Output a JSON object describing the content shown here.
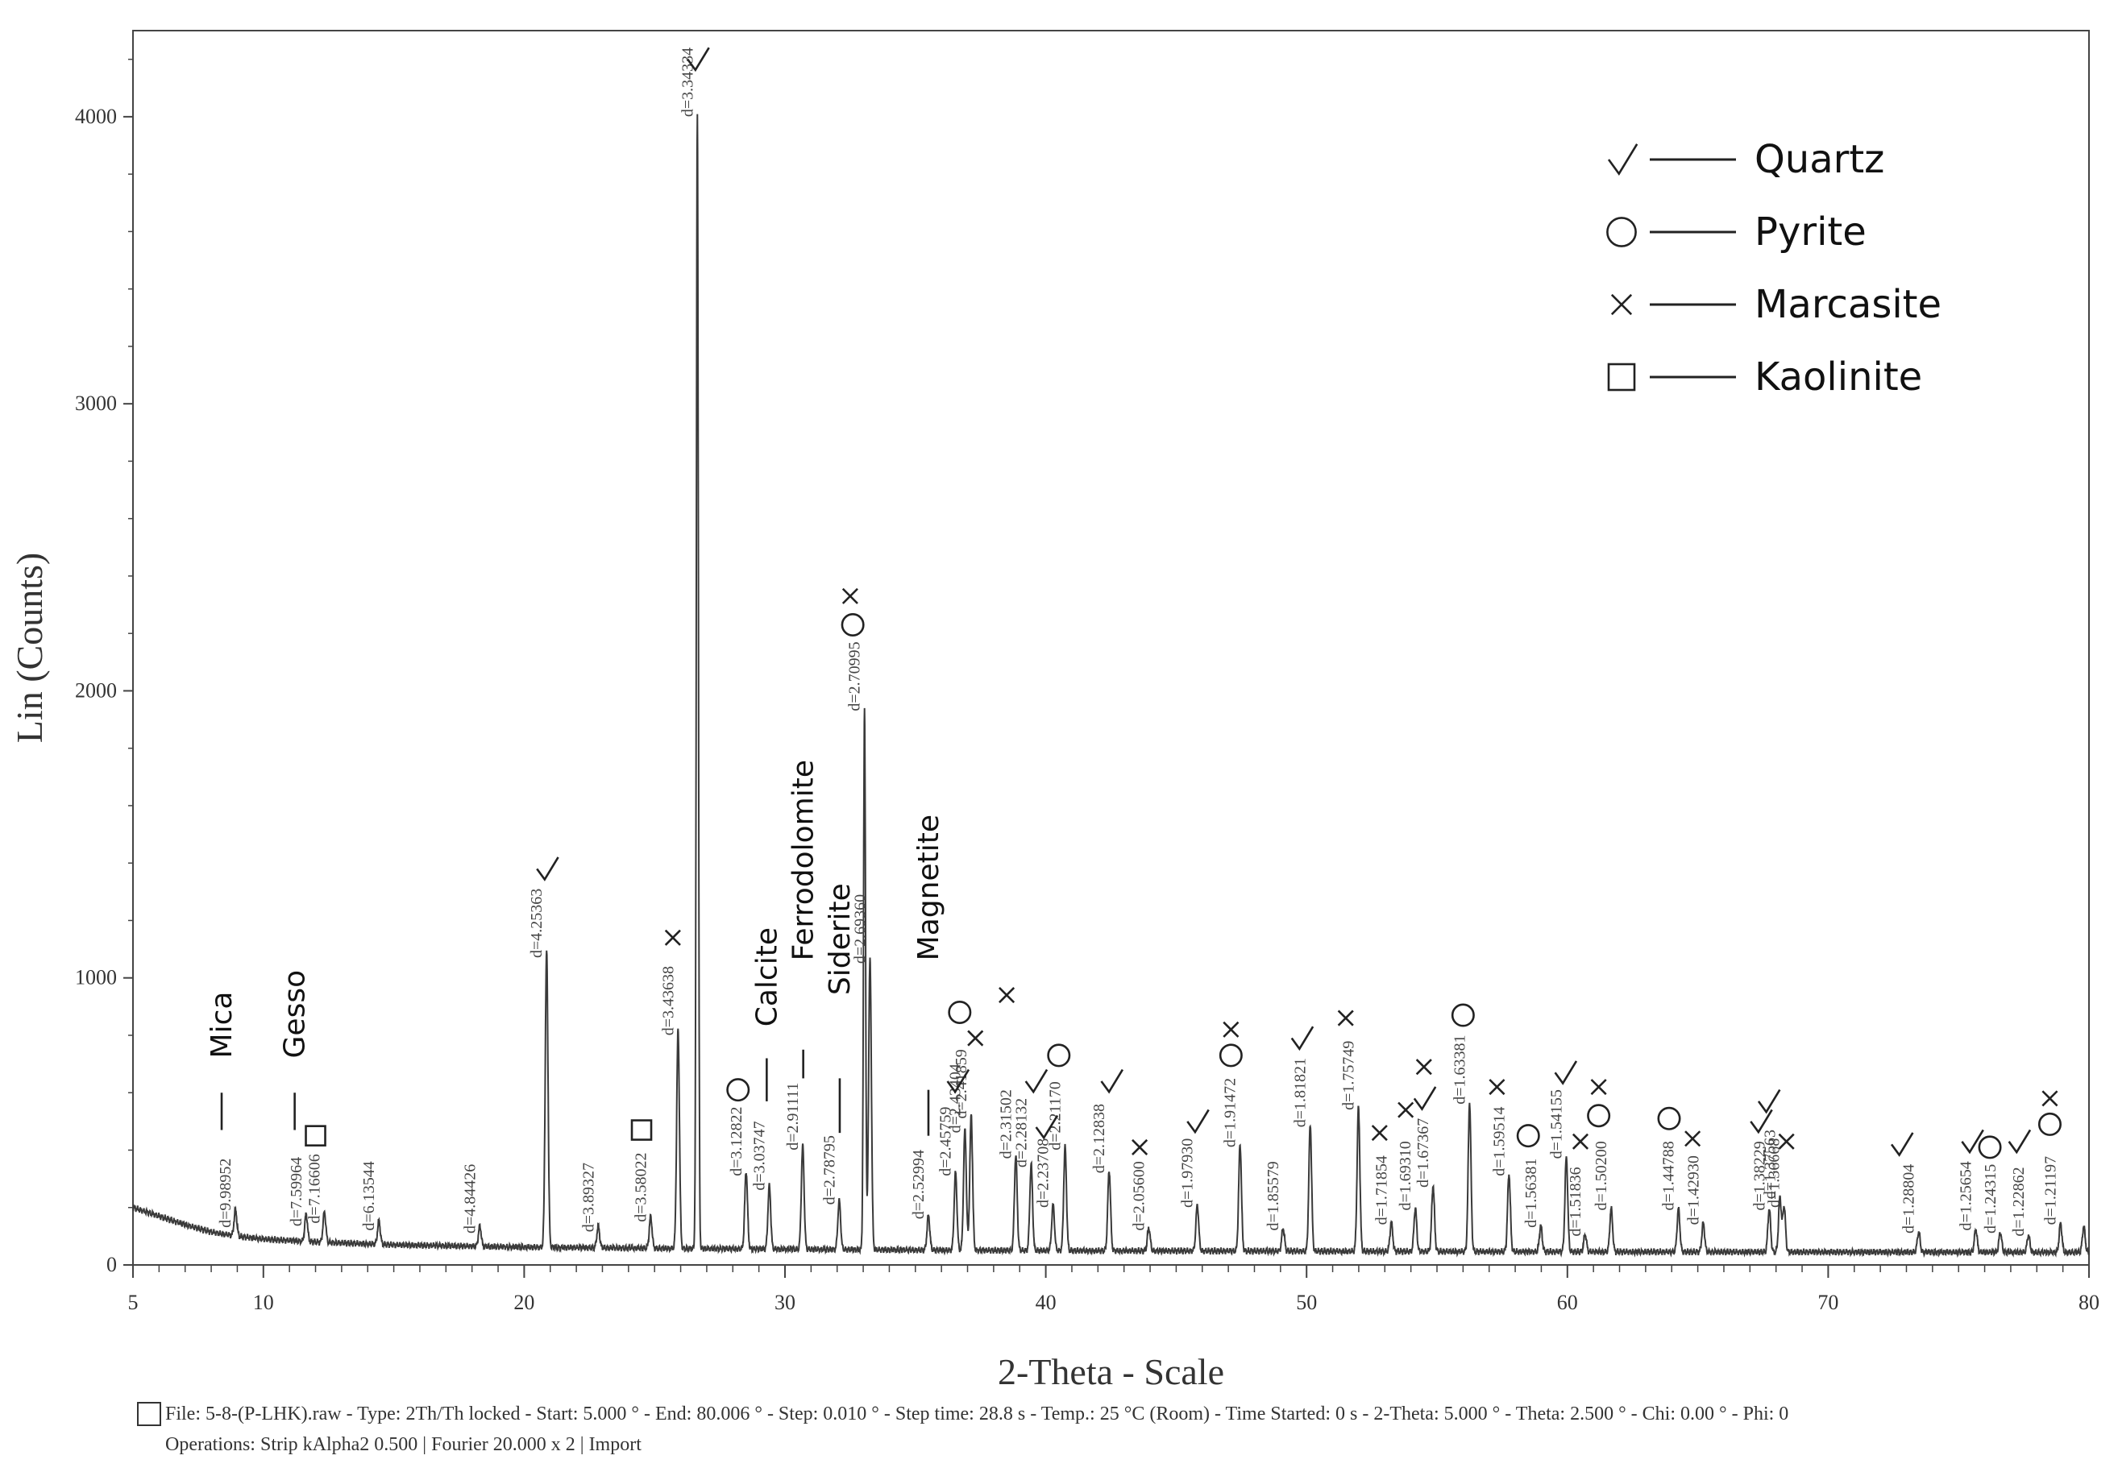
{
  "chart_data": {
    "type": "line",
    "title": "",
    "xlabel": "2-Theta - Scale",
    "ylabel": "Lin (Counts)",
    "xlim": [
      5,
      80
    ],
    "ylim": [
      0,
      4300
    ],
    "x_ticks": [
      5,
      10,
      20,
      30,
      40,
      50,
      60,
      70,
      80
    ],
    "y_ticks": [
      0,
      1000,
      2000,
      3000,
      4000
    ],
    "baseline": [
      [
        5,
        200
      ],
      [
        6,
        170
      ],
      [
        7,
        140
      ],
      [
        8,
        115
      ],
      [
        9,
        100
      ],
      [
        10,
        90
      ],
      [
        12,
        80
      ],
      [
        15,
        70
      ],
      [
        20,
        62
      ],
      [
        25,
        58
      ],
      [
        30,
        55
      ],
      [
        35,
        52
      ],
      [
        40,
        50
      ],
      [
        50,
        48
      ],
      [
        60,
        46
      ],
      [
        70,
        45
      ],
      [
        80,
        44
      ]
    ],
    "peaks": [
      {
        "x": 8.93,
        "y": 90,
        "label": "d=9.98952"
      },
      {
        "x": 11.64,
        "y": 95,
        "label": "d=7.59964"
      },
      {
        "x": 12.34,
        "y": 105,
        "label": "d=7.16606"
      },
      {
        "x": 14.43,
        "y": 80,
        "label": "d=6.13544"
      },
      {
        "x": 18.3,
        "y": 70,
        "label": "d=4.84426"
      },
      {
        "x": 20.86,
        "y": 1030,
        "label": "d=4.25363"
      },
      {
        "x": 22.84,
        "y": 75,
        "label": "d=3.89327"
      },
      {
        "x": 24.85,
        "y": 110,
        "label": "d=3.58022"
      },
      {
        "x": 25.9,
        "y": 760,
        "label": "d=3.43638"
      },
      {
        "x": 26.64,
        "y": 3960,
        "label": "d=3.34334"
      },
      {
        "x": 28.51,
        "y": 270,
        "label": "d=3.12822"
      },
      {
        "x": 29.4,
        "y": 220,
        "label": "d=3.03747"
      },
      {
        "x": 30.68,
        "y": 360,
        "label": "d=2.91111"
      },
      {
        "x": 32.08,
        "y": 170,
        "label": "d=2.78795"
      },
      {
        "x": 33.05,
        "y": 1890,
        "label": "d=2.70995"
      },
      {
        "x": 33.26,
        "y": 1010,
        "label": "d=2.69360"
      },
      {
        "x": 35.5,
        "y": 120,
        "label": "d=2.52994"
      },
      {
        "x": 36.54,
        "y": 270,
        "label": "d=2.45759"
      },
      {
        "x": 36.9,
        "y": 420,
        "label": "d=2.43404"
      },
      {
        "x": 37.14,
        "y": 470,
        "label": "d=2.41859"
      },
      {
        "x": 38.85,
        "y": 330,
        "label": "d=2.31502"
      },
      {
        "x": 39.44,
        "y": 300,
        "label": "d=2.28132"
      },
      {
        "x": 40.28,
        "y": 160,
        "label": "d=2.23708"
      },
      {
        "x": 40.74,
        "y": 360,
        "label": "d=2.21170"
      },
      {
        "x": 42.43,
        "y": 280,
        "label": "d=2.12838"
      },
      {
        "x": 43.95,
        "y": 80,
        "label": "d=2.05600"
      },
      {
        "x": 45.81,
        "y": 160,
        "label": "d=1.97930"
      },
      {
        "x": 47.45,
        "y": 370,
        "label": "d=1.91472"
      },
      {
        "x": 49.1,
        "y": 80,
        "label": "d=1.85579"
      },
      {
        "x": 50.14,
        "y": 440,
        "label": "d=1.81821"
      },
      {
        "x": 51.99,
        "y": 500,
        "label": "d=1.75749"
      },
      {
        "x": 53.25,
        "y": 100,
        "label": "d=1.71854"
      },
      {
        "x": 54.17,
        "y": 150,
        "label": "d=1.69310"
      },
      {
        "x": 54.85,
        "y": 230,
        "label": "d=1.67367"
      },
      {
        "x": 56.25,
        "y": 520,
        "label": "d=1.63381"
      },
      {
        "x": 57.76,
        "y": 270,
        "label": "d=1.59514"
      },
      {
        "x": 58.98,
        "y": 90,
        "label": "d=1.56381"
      },
      {
        "x": 59.96,
        "y": 330,
        "label": "d=1.54155"
      },
      {
        "x": 60.68,
        "y": 60,
        "label": "d=1.51836"
      },
      {
        "x": 61.68,
        "y": 150,
        "label": "d=1.50200"
      },
      {
        "x": 64.26,
        "y": 150,
        "label": "d=1.44788"
      },
      {
        "x": 65.21,
        "y": 100,
        "label": "d=1.42930"
      },
      {
        "x": 67.74,
        "y": 150,
        "label": "d=1.38229"
      },
      {
        "x": 68.15,
        "y": 190,
        "label": "d=1.37563"
      },
      {
        "x": 68.31,
        "y": 160,
        "label": "d=1.36668"
      },
      {
        "x": 73.47,
        "y": 70,
        "label": "d=1.28804"
      },
      {
        "x": 75.66,
        "y": 80,
        "label": "d=1.25654"
      },
      {
        "x": 76.6,
        "y": 70,
        "label": "d=1.24315"
      },
      {
        "x": 77.68,
        "y": 60,
        "label": "d=1.22862"
      },
      {
        "x": 78.91,
        "y": 100,
        "label": "d=1.21197"
      },
      {
        "x": 79.8,
        "y": 90,
        "label": ""
      }
    ],
    "phase_markers": [
      {
        "symbol": "check",
        "x": 20.86,
        "y": 1380
      },
      {
        "symbol": "check",
        "x": 26.64,
        "y": 4200
      },
      {
        "symbol": "check",
        "x": 36.6,
        "y": 640
      },
      {
        "symbol": "check",
        "x": 39.6,
        "y": 640
      },
      {
        "symbol": "check",
        "x": 40.0,
        "y": 480
      },
      {
        "symbol": "check",
        "x": 42.5,
        "y": 640
      },
      {
        "symbol": "check",
        "x": 45.8,
        "y": 500
      },
      {
        "symbol": "check",
        "x": 49.8,
        "y": 790
      },
      {
        "symbol": "check",
        "x": 54.5,
        "y": 580
      },
      {
        "symbol": "check",
        "x": 59.9,
        "y": 670
      },
      {
        "symbol": "check",
        "x": 67.4,
        "y": 500
      },
      {
        "symbol": "check",
        "x": 67.7,
        "y": 570
      },
      {
        "symbol": "check",
        "x": 72.8,
        "y": 420
      },
      {
        "symbol": "check",
        "x": 75.5,
        "y": 430
      },
      {
        "symbol": "check",
        "x": 77.3,
        "y": 430
      },
      {
        "symbol": "circle",
        "x": 28.2,
        "y": 610
      },
      {
        "symbol": "circle",
        "x": 32.6,
        "y": 2230
      },
      {
        "symbol": "circle",
        "x": 36.7,
        "y": 880
      },
      {
        "symbol": "circle",
        "x": 40.5,
        "y": 730
      },
      {
        "symbol": "circle",
        "x": 47.1,
        "y": 730
      },
      {
        "symbol": "circle",
        "x": 56.0,
        "y": 870
      },
      {
        "symbol": "circle",
        "x": 58.5,
        "y": 450
      },
      {
        "symbol": "circle",
        "x": 61.2,
        "y": 520
      },
      {
        "symbol": "circle",
        "x": 63.9,
        "y": 510
      },
      {
        "symbol": "circle",
        "x": 76.2,
        "y": 410
      },
      {
        "symbol": "circle",
        "x": 78.5,
        "y": 490
      },
      {
        "symbol": "cross",
        "x": 25.7,
        "y": 1140
      },
      {
        "symbol": "cross",
        "x": 32.5,
        "y": 2330
      },
      {
        "symbol": "cross",
        "x": 37.3,
        "y": 790
      },
      {
        "symbol": "cross",
        "x": 38.5,
        "y": 940
      },
      {
        "symbol": "cross",
        "x": 43.6,
        "y": 410
      },
      {
        "symbol": "cross",
        "x": 47.1,
        "y": 820
      },
      {
        "symbol": "cross",
        "x": 51.5,
        "y": 860
      },
      {
        "symbol": "cross",
        "x": 52.8,
        "y": 460
      },
      {
        "symbol": "cross",
        "x": 53.8,
        "y": 540
      },
      {
        "symbol": "cross",
        "x": 54.5,
        "y": 690
      },
      {
        "symbol": "cross",
        "x": 57.3,
        "y": 620
      },
      {
        "symbol": "cross",
        "x": 60.5,
        "y": 430
      },
      {
        "symbol": "cross",
        "x": 61.2,
        "y": 620
      },
      {
        "symbol": "cross",
        "x": 64.8,
        "y": 440
      },
      {
        "symbol": "cross",
        "x": 68.4,
        "y": 430
      },
      {
        "symbol": "cross",
        "x": 78.5,
        "y": 580
      },
      {
        "symbol": "square",
        "x": 12.0,
        "y": 450
      },
      {
        "symbol": "square",
        "x": 24.5,
        "y": 470
      }
    ],
    "mineral_labels": [
      {
        "text": "Mica",
        "x": 8.4,
        "y_text": 720,
        "y_line_top": 600,
        "y_line_bottom": 470
      },
      {
        "text": "Gesso",
        "x": 11.2,
        "y_text": 720,
        "y_line_top": 600,
        "y_line_bottom": 470
      },
      {
        "text": "Calcite",
        "x": 29.3,
        "y_text": 830,
        "y_line_top": 720,
        "y_line_bottom": 570
      },
      {
        "text": "Ferrodolomite",
        "x": 30.7,
        "y_text": 1060,
        "y_line_top": 750,
        "y_line_bottom": 650
      },
      {
        "text": "Siderite",
        "x": 32.1,
        "y_text": 940,
        "y_line_top": 650,
        "y_line_bottom": 460
      },
      {
        "text": "Magnetite",
        "x": 35.5,
        "y_text": 1060,
        "y_line_top": 610,
        "y_line_bottom": 450
      }
    ],
    "legend": {
      "placement": "top-right",
      "entries": [
        {
          "symbol": "check",
          "label": "Quartz"
        },
        {
          "symbol": "circle",
          "label": "Pyrite"
        },
        {
          "symbol": "cross",
          "label": "Marcasite"
        },
        {
          "symbol": "square",
          "label": "Kaolinite"
        }
      ]
    }
  },
  "footer": {
    "line1": "File: 5-8-(P-LHK).raw - Type: 2Th/Th locked - Start: 5.000 ° - End: 80.006 ° - Step: 0.010 ° - Step time: 28.8 s - Temp.: 25 °C (Room) - Time Started: 0 s - 2-Theta: 5.000 ° - Theta: 2.500 ° - Chi: 0.00 ° - Phi: 0",
    "line2": "Operations: Strip kAlpha2 0.500 | Fourier 20.000 x 2 | Import"
  }
}
